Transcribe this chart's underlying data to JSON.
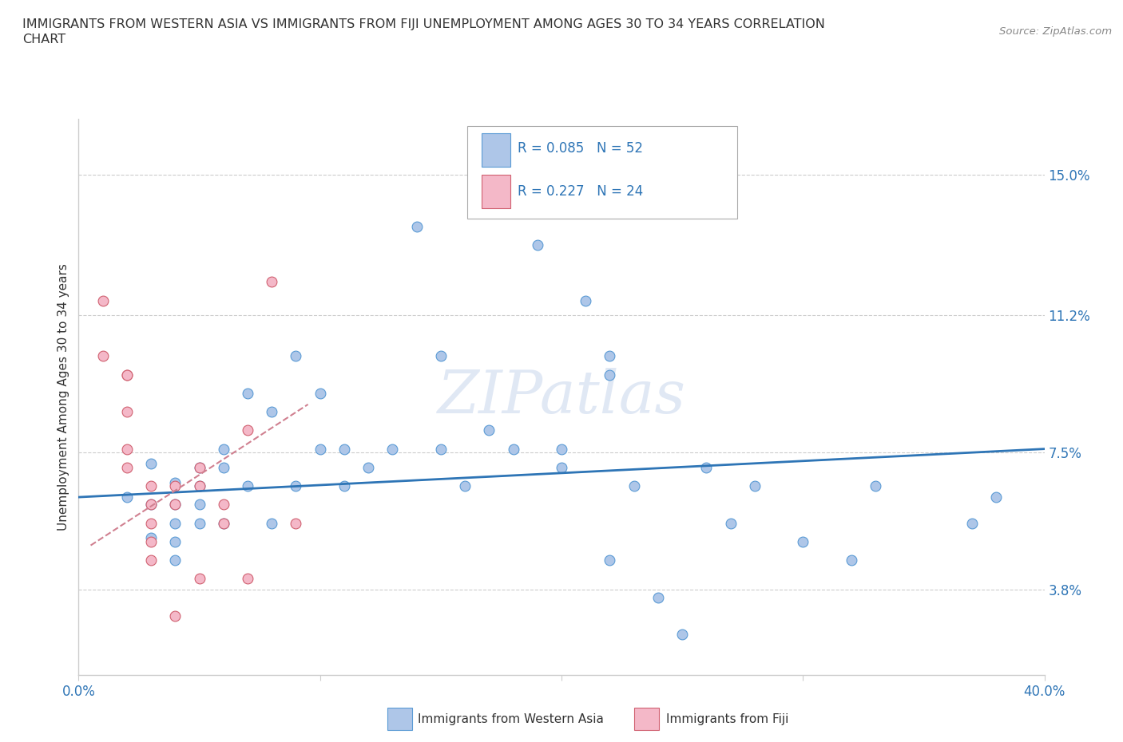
{
  "title_line1": "IMMIGRANTS FROM WESTERN ASIA VS IMMIGRANTS FROM FIJI UNEMPLOYMENT AMONG AGES 30 TO 34 YEARS CORRELATION",
  "title_line2": "CHART",
  "source": "Source: ZipAtlas.com",
  "ylabel": "Unemployment Among Ages 30 to 34 years",
  "xlim": [
    0,
    0.4
  ],
  "ylim": [
    0.015,
    0.165
  ],
  "xticks": [
    0.0,
    0.1,
    0.2,
    0.3,
    0.4
  ],
  "xticklabels": [
    "0.0%",
    "",
    "",
    "",
    "40.0%"
  ],
  "ytick_positions": [
    0.038,
    0.075,
    0.112,
    0.15
  ],
  "ytick_labels": [
    "3.8%",
    "7.5%",
    "11.2%",
    "15.0%"
  ],
  "grid_color": "#cccccc",
  "background_color": "#ffffff",
  "watermark": "ZIPatlas",
  "legend_R1": "R = 0.085",
  "legend_N1": "N = 52",
  "legend_R2": "R = 0.227",
  "legend_N2": "N = 24",
  "series1_color": "#aec6e8",
  "series1_edge": "#5b9bd5",
  "series2_color": "#f4b8c8",
  "series2_edge": "#d06070",
  "trendline1_color": "#2e75b6",
  "trendline2_color": "#d08090",
  "label_color": "#2e75b6",
  "series1_x": [
    0.02,
    0.03,
    0.03,
    0.03,
    0.04,
    0.04,
    0.04,
    0.04,
    0.04,
    0.05,
    0.05,
    0.05,
    0.05,
    0.06,
    0.06,
    0.06,
    0.07,
    0.07,
    0.08,
    0.08,
    0.09,
    0.09,
    0.1,
    0.1,
    0.11,
    0.11,
    0.12,
    0.13,
    0.14,
    0.15,
    0.15,
    0.16,
    0.17,
    0.18,
    0.19,
    0.2,
    0.2,
    0.21,
    0.22,
    0.22,
    0.23,
    0.24,
    0.25,
    0.26,
    0.28,
    0.3,
    0.33,
    0.37,
    0.38,
    0.22,
    0.27,
    0.32
  ],
  "series1_y": [
    0.063,
    0.072,
    0.061,
    0.052,
    0.067,
    0.061,
    0.056,
    0.051,
    0.046,
    0.071,
    0.066,
    0.061,
    0.056,
    0.076,
    0.071,
    0.056,
    0.091,
    0.066,
    0.086,
    0.056,
    0.101,
    0.066,
    0.091,
    0.076,
    0.076,
    0.066,
    0.071,
    0.076,
    0.136,
    0.101,
    0.076,
    0.066,
    0.081,
    0.076,
    0.131,
    0.076,
    0.071,
    0.116,
    0.101,
    0.096,
    0.066,
    0.036,
    0.026,
    0.071,
    0.066,
    0.051,
    0.066,
    0.056,
    0.063,
    0.046,
    0.056,
    0.046
  ],
  "series2_x": [
    0.01,
    0.01,
    0.02,
    0.02,
    0.02,
    0.02,
    0.02,
    0.03,
    0.03,
    0.03,
    0.03,
    0.03,
    0.04,
    0.04,
    0.04,
    0.05,
    0.05,
    0.05,
    0.06,
    0.06,
    0.07,
    0.07,
    0.08,
    0.09
  ],
  "series2_y": [
    0.116,
    0.101,
    0.096,
    0.096,
    0.086,
    0.076,
    0.071,
    0.066,
    0.061,
    0.056,
    0.051,
    0.046,
    0.066,
    0.061,
    0.031,
    0.071,
    0.066,
    0.041,
    0.061,
    0.056,
    0.081,
    0.041,
    0.121,
    0.056
  ],
  "trendline1_x": [
    0.0,
    0.4
  ],
  "trendline1_y": [
    0.063,
    0.076
  ],
  "trendline2_x": [
    0.005,
    0.095
  ],
  "trendline2_y": [
    0.05,
    0.088
  ]
}
